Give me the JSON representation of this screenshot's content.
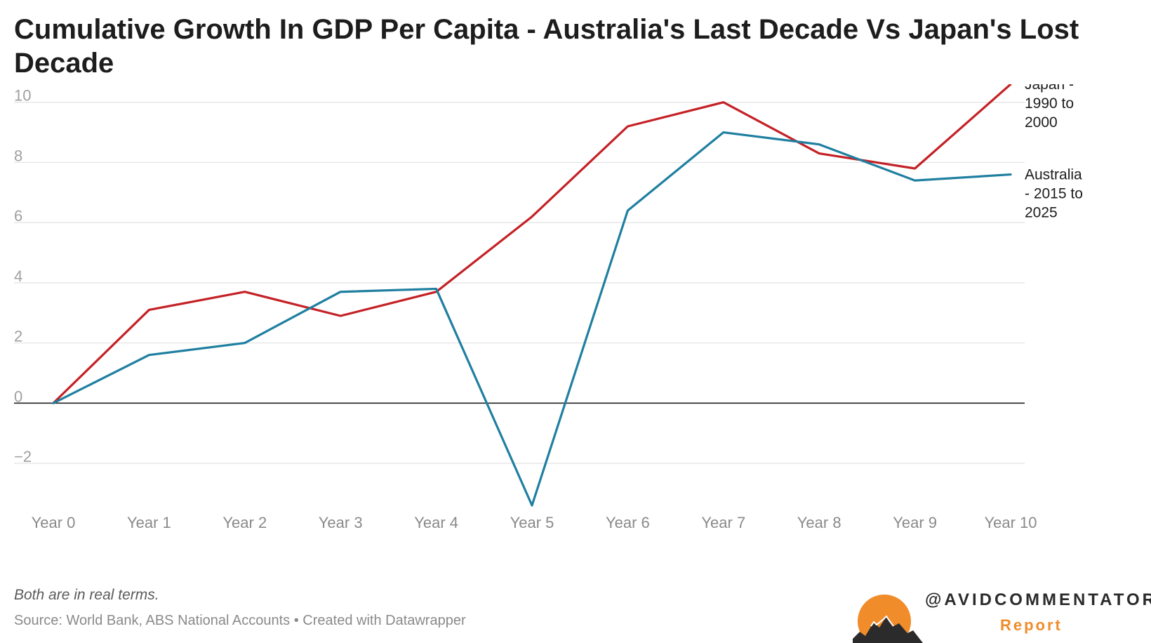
{
  "title": "Cumulative Growth In GDP Per Capita - Australia's Last Decade Vs Japan's Lost Decade",
  "note": "Both are in real terms.",
  "source": "Source: World Bank, ABS National Accounts • Created with Datawrapper",
  "brand": {
    "handle": "@AVIDCOMMENTATOR",
    "sub": "Report"
  },
  "colors": {
    "japan": "#c42126",
    "australia": "#1f7fa0",
    "grid": "#e2e2e2",
    "zero": "#222222",
    "logo_sun": "#f08c2a",
    "logo_mountain": "#2b2b2b"
  },
  "chart_data": {
    "type": "line",
    "title": "Cumulative Growth In GDP Per Capita - Australia's Last Decade Vs Japan's Lost Decade",
    "categories": [
      "Year 0",
      "Year 1",
      "Year 2",
      "Year 3",
      "Year 4",
      "Year 5",
      "Year 6",
      "Year 7",
      "Year 8",
      "Year 9",
      "Year 10"
    ],
    "yticks": [
      -2,
      0,
      2,
      4,
      6,
      8,
      10
    ],
    "ytick_labels": [
      "−2",
      "0",
      "2",
      "4",
      "6",
      "8",
      "10"
    ],
    "ylim": [
      -3.4,
      10.6
    ],
    "grid": true,
    "series": [
      {
        "name": "Japan - 1990 to 2000",
        "label_lines": [
          "Japan -",
          "1990 to",
          "2000"
        ],
        "color": "#c42126",
        "values": [
          0,
          3.1,
          3.7,
          2.9,
          3.7,
          6.2,
          9.2,
          10.0,
          8.3,
          7.8,
          10.6
        ]
      },
      {
        "name": "Australia - 2015 to 2025",
        "label_lines": [
          "Australia",
          "- 2015 to",
          "2025"
        ],
        "color": "#1f7fa0",
        "values": [
          0,
          1.6,
          2.0,
          3.7,
          3.8,
          -3.4,
          6.4,
          9.0,
          8.6,
          7.4,
          7.6
        ]
      }
    ]
  }
}
